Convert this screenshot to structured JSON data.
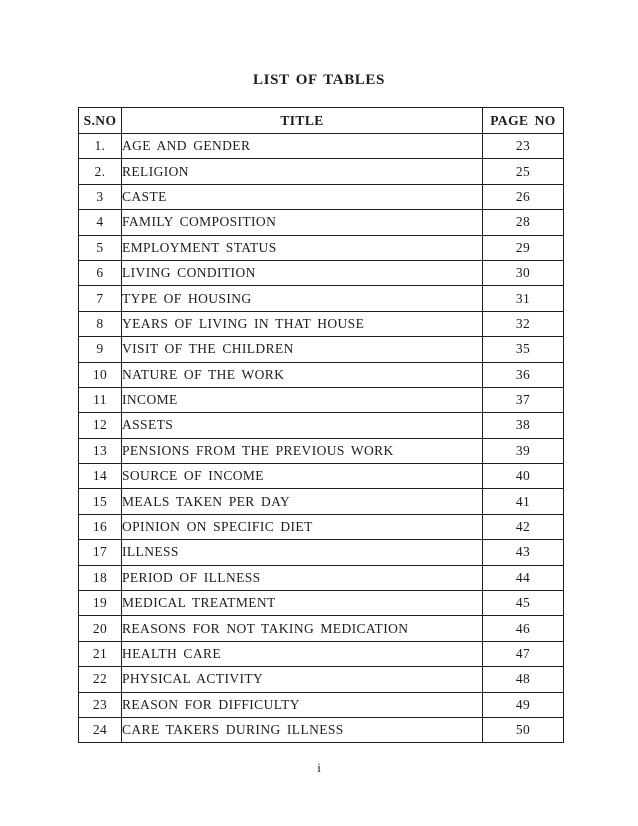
{
  "page": {
    "title": "LIST OF TABLES",
    "footer_page_number": "i"
  },
  "colors": {
    "background": "#ffffff",
    "text": "#1c1c1c",
    "table_border": "#1c1c1c"
  },
  "table": {
    "headers": {
      "sno": "S.NO",
      "title": "TITLE",
      "page_no": "PAGE NO"
    },
    "rows": [
      {
        "sno": "1.",
        "title": "AGE AND GENDER",
        "page": "23"
      },
      {
        "sno": "2.",
        "title": "RELIGION",
        "page": "25"
      },
      {
        "sno": "3",
        "title": "CASTE",
        "page": "26"
      },
      {
        "sno": "4",
        "title": "FAMILY COMPOSITION",
        "page": "28"
      },
      {
        "sno": "5",
        "title": "EMPLOYMENT STATUS",
        "page": "29"
      },
      {
        "sno": "6",
        "title": "LIVING CONDITION",
        "page": "30"
      },
      {
        "sno": "7",
        "title": "TYPE OF HOUSING",
        "page": "31"
      },
      {
        "sno": "8",
        "title": "YEARS OF LIVING IN THAT HOUSE",
        "page": "32"
      },
      {
        "sno": "9",
        "title": "VISIT OF THE CHILDREN",
        "page": "35"
      },
      {
        "sno": "10",
        "title": "NATURE OF THE WORK",
        "page": "36"
      },
      {
        "sno": "11",
        "title": "INCOME",
        "page": "37"
      },
      {
        "sno": "12",
        "title": "ASSETS",
        "page": "38"
      },
      {
        "sno": "13",
        "title": "PENSIONS FROM THE PREVIOUS WORK",
        "page": "39"
      },
      {
        "sno": "14",
        "title": "SOURCE OF INCOME",
        "page": "40"
      },
      {
        "sno": "15",
        "title": "MEALS TAKEN PER DAY",
        "page": "41"
      },
      {
        "sno": "16",
        "title": "OPINION ON SPECIFIC DIET",
        "page": "42"
      },
      {
        "sno": "17",
        "title": "ILLNESS",
        "page": "43"
      },
      {
        "sno": "18",
        "title": "PERIOD OF ILLNESS",
        "page": "44"
      },
      {
        "sno": "19",
        "title": "MEDICAL TREATMENT",
        "page": "45"
      },
      {
        "sno": "20",
        "title": "REASONS FOR NOT TAKING MEDICATION",
        "page": "46"
      },
      {
        "sno": "21",
        "title": "HEALTH CARE",
        "page": "47"
      },
      {
        "sno": "22",
        "title": "PHYSICAL ACTIVITY",
        "page": "48"
      },
      {
        "sno": "23",
        "title": "REASON FOR DIFFICULTY",
        "page": "49"
      },
      {
        "sno": "24",
        "title": "CARE TAKERS DURING ILLNESS",
        "page": "50"
      }
    ]
  }
}
